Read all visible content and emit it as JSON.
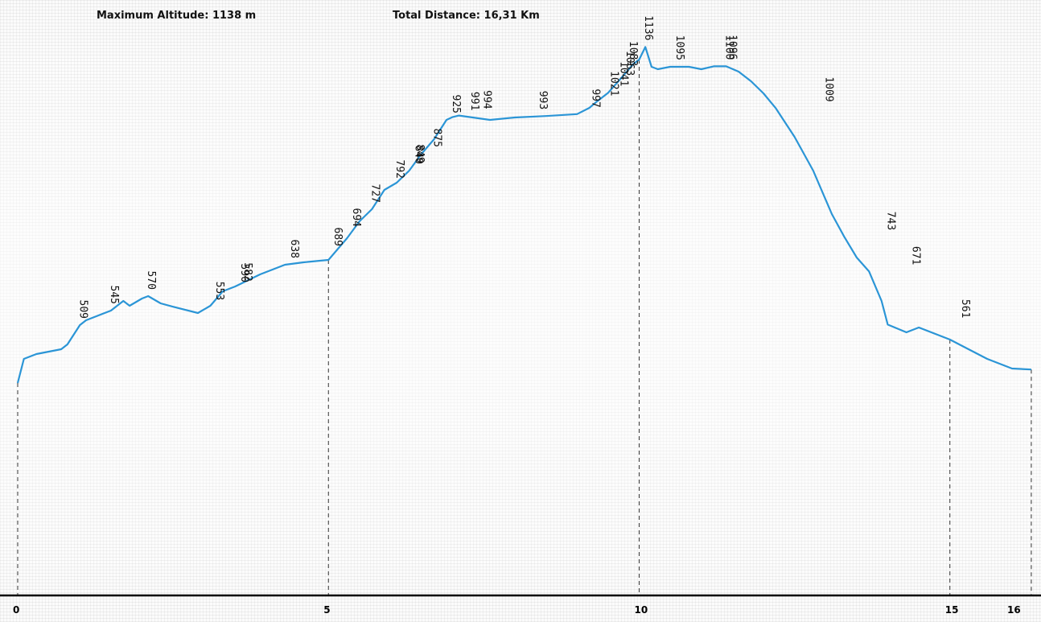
{
  "header": {
    "max_altitude_label": "Maximum Altitude:",
    "max_altitude_value": "1138 m",
    "total_distance_label": "Total Distance:",
    "total_distance_value": "16,31 Km"
  },
  "colors": {
    "profile_line": "#2b95d6",
    "axis": "#000000",
    "guide_line": "#333333"
  },
  "chart_data": {
    "type": "line",
    "title": "",
    "xlabel": "",
    "ylabel": "",
    "x_unit": "km",
    "y_unit": "m",
    "xlim": [
      0,
      16.31
    ],
    "ylim": [
      0,
      1150
    ],
    "x_ticks": [
      0,
      5,
      10,
      15,
      16
    ],
    "vertical_guides": [
      0,
      5,
      10,
      15,
      16.31
    ],
    "grid": true,
    "series": [
      {
        "x": [
          0,
          0.1,
          0.3,
          0.7,
          0.8,
          1.0,
          1.1,
          1.5,
          1.7,
          1.8,
          2.0,
          2.1,
          2.3,
          2.5,
          2.9,
          3.1,
          3.3,
          3.5,
          3.9,
          4.3,
          4.6,
          5.0,
          5.1,
          5.3,
          5.5,
          5.7,
          5.9,
          6.1,
          6.3,
          6.5,
          6.7,
          6.9,
          7.0,
          7.1,
          7.6,
          8.0,
          8.5,
          9.0,
          9.2,
          9.3,
          9.5,
          9.7,
          9.8,
          9.9,
          10.0,
          10.1,
          10.2,
          10.3,
          10.5,
          10.8,
          11.0,
          11.2,
          11.4,
          11.6,
          11.8,
          12.0,
          12.2,
          12.5,
          12.8,
          13.1,
          13.3,
          13.5,
          13.7,
          13.9,
          14.0,
          14.3,
          14.5,
          15.0,
          15.3,
          15.6,
          16.0,
          16.31
        ],
        "y": [
          440,
          490,
          500,
          510,
          520,
          560,
          570,
          590,
          610,
          600,
          615,
          620,
          605,
          598,
          585,
          600,
          630,
          640,
          665,
          685,
          690,
          695,
          710,
          740,
          775,
          800,
          840,
          855,
          880,
          915,
          945,
          985,
          991,
          994,
          985,
          990,
          993,
          997,
          1010,
          1021,
          1041,
          1070,
          1085,
          1100,
          1110,
          1136,
          1095,
          1090,
          1095,
          1095,
          1090,
          1096,
          1096,
          1085,
          1065,
          1040,
          1009,
          950,
          880,
          790,
          743,
          700,
          671,
          610,
          561,
          545,
          555,
          530,
          510,
          490,
          470,
          468
        ]
      }
    ],
    "point_labels": [
      {
        "x": 1.0,
        "y": 560,
        "label": "509"
      },
      {
        "x": 1.5,
        "y": 590,
        "label": "545"
      },
      {
        "x": 2.1,
        "y": 620,
        "label": "570"
      },
      {
        "x": 3.2,
        "y": 598,
        "label": "553"
      },
      {
        "x": 3.6,
        "y": 635,
        "label": "590"
      },
      {
        "x": 3.65,
        "y": 637,
        "label": "582"
      },
      {
        "x": 4.4,
        "y": 685,
        "label": "638"
      },
      {
        "x": 5.1,
        "y": 710,
        "label": "689"
      },
      {
        "x": 5.4,
        "y": 750,
        "label": "694"
      },
      {
        "x": 5.7,
        "y": 800,
        "label": "727"
      },
      {
        "x": 6.1,
        "y": 850,
        "label": "792"
      },
      {
        "x": 6.4,
        "y": 880,
        "label": "840"
      },
      {
        "x": 6.42,
        "y": 882,
        "label": "849"
      },
      {
        "x": 6.7,
        "y": 915,
        "label": "875"
      },
      {
        "x": 7.0,
        "y": 985,
        "label": "925"
      },
      {
        "x": 7.3,
        "y": 991,
        "label": "991"
      },
      {
        "x": 7.5,
        "y": 994,
        "label": "994"
      },
      {
        "x": 8.4,
        "y": 993,
        "label": "993"
      },
      {
        "x": 9.25,
        "y": 997,
        "label": "997"
      },
      {
        "x": 9.55,
        "y": 1021,
        "label": "1021"
      },
      {
        "x": 9.7,
        "y": 1041,
        "label": "1041"
      },
      {
        "x": 9.8,
        "y": 1063,
        "label": "1063"
      },
      {
        "x": 9.85,
        "y": 1083,
        "label": "1083"
      },
      {
        "x": 10.1,
        "y": 1136,
        "label": "1136"
      },
      {
        "x": 10.6,
        "y": 1095,
        "label": "1095"
      },
      {
        "x": 11.4,
        "y": 1096,
        "label": "1100"
      },
      {
        "x": 11.45,
        "y": 1096,
        "label": "1096"
      },
      {
        "x": 13.0,
        "y": 1009,
        "label": "1009"
      },
      {
        "x": 14.0,
        "y": 743,
        "label": "743"
      },
      {
        "x": 14.4,
        "y": 671,
        "label": "671"
      },
      {
        "x": 15.2,
        "y": 561,
        "label": "561"
      }
    ]
  }
}
